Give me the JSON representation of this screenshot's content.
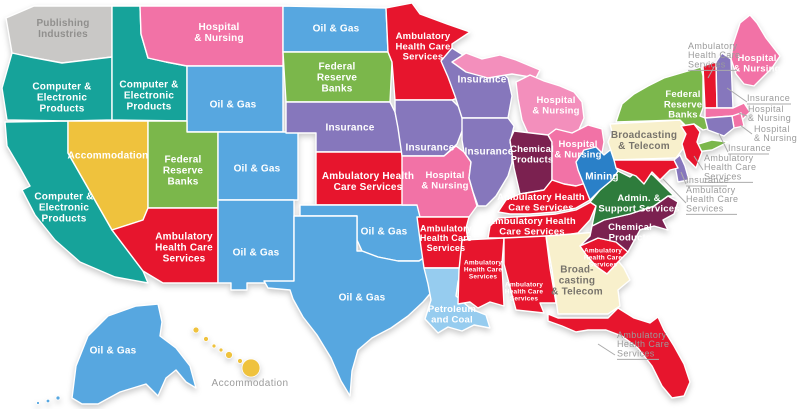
{
  "industries": {
    "publishing": {
      "label": "Publishing Industries",
      "color": "#C9C8C6",
      "text_color": "#908F8D"
    },
    "computer": {
      "label": "Computer & Electronic Products",
      "color": "#16A39A",
      "text_color": "#FFFFFF"
    },
    "hospital": {
      "label": "Hospital & Nursing",
      "color": "#F272A6",
      "text_color": "#FFFFFF"
    },
    "oil_gas": {
      "label": "Oil & Gas",
      "color": "#57A7E0",
      "text_color": "#FFFFFF"
    },
    "accommodation": {
      "label": "Accommodation",
      "color": "#EFC23D",
      "text_color": "#FFFFFF"
    },
    "fed_reserve": {
      "label": "Federal Reserve Banks",
      "color": "#7BB74B",
      "text_color": "#FFFFFF"
    },
    "insurance": {
      "label": "Insurance",
      "color": "#8677BC",
      "text_color": "#FFFFFF"
    },
    "ambulatory": {
      "label": "Ambulatory Health Care Services",
      "color": "#E7152D",
      "text_color": "#FFFFFF"
    },
    "chemical": {
      "label": "Chemical Products",
      "color": "#7B2150",
      "text_color": "#FFFFFF"
    },
    "petroleum_coal": {
      "label": "Petroleum and Coal",
      "color": "#96CCEF",
      "text_color": "#FFFFFF"
    },
    "broadcasting": {
      "label": "Broadcasting & Telecom",
      "color": "#F8F0CC",
      "text_color": "#78746C"
    },
    "mining": {
      "label": "Mining",
      "color": "#2A80C8",
      "text_color": "#FFFFFF"
    },
    "admin_support": {
      "label": "Admin. & Support Services",
      "color": "#2E7C3C",
      "text_color": "#FFFFFF"
    }
  },
  "state_color_overrides": {
    "MI": "#F38FBC"
  },
  "states": {
    "WA": "publishing",
    "OR": "computer",
    "ID": "computer",
    "CA": "computer",
    "MT": "hospital",
    "WY": "oil_gas",
    "NV": "accommodation",
    "UT": "fed_reserve",
    "CO": "oil_gas",
    "AZ": "ambulatory",
    "NM": "oil_gas",
    "ND": "oil_gas",
    "SD": "fed_reserve",
    "NE": "insurance",
    "KS": "ambulatory",
    "OK": "oil_gas",
    "TX": "oil_gas",
    "MN": "ambulatory",
    "IA": "insurance",
    "MO": "hospital",
    "AR": "ambulatory",
    "LA": "petroleum_coal",
    "WI": "insurance",
    "IL": "insurance",
    "MI": "hospital",
    "IN": "chemical",
    "OH": "hospital",
    "KY": "ambulatory",
    "TN": "ambulatory",
    "MS": "ambulatory",
    "AL": "ambulatory",
    "GA": "broadcasting",
    "FL": "ambulatory",
    "SC": "ambulatory",
    "NC": "chemical",
    "VA": "admin_support",
    "WV": "mining",
    "PA": "broadcasting",
    "NY": "fed_reserve",
    "VT": "ambulatory",
    "NH": "insurance",
    "ME": "hospital",
    "MA": "hospital",
    "RI": "hospital",
    "CT": "insurance",
    "NJ": "ambulatory",
    "DE": "insurance",
    "MD": "ambulatory",
    "AK": "oil_gas",
    "HI": "accommodation"
  },
  "state_labels": {
    "WA": [
      "Publishing",
      "Industries"
    ],
    "OR": [
      "Computer &",
      "Electronic",
      "Products"
    ],
    "ID": [
      "Computer &",
      "Electronic",
      "Products"
    ],
    "CA": [
      "Computer &",
      "Electronic",
      "Products"
    ],
    "MT": [
      "Hospital",
      "& Nursing"
    ],
    "WY": [
      "Oil & Gas"
    ],
    "NV": [
      "Accommodation"
    ],
    "UT": [
      "Federal",
      "Reserve",
      "Banks"
    ],
    "CO": [
      "Oil & Gas"
    ],
    "AZ": [
      "Ambulatory",
      "Health Care",
      "Services"
    ],
    "NM": [
      "Oil & Gas"
    ],
    "ND": [
      "Oil & Gas"
    ],
    "SD": [
      "Federal",
      "Reserve",
      "Banks"
    ],
    "NE": [
      "Insurance"
    ],
    "KS": [
      "Ambulatory Health",
      "Care Services"
    ],
    "OK": [
      "Oil & Gas"
    ],
    "TX": [
      "Oil & Gas"
    ],
    "MN": [
      "Ambulatory",
      "Health Care",
      "Services"
    ],
    "IA": [
      "Insurance"
    ],
    "MO": [
      "Hospital",
      "& Nursing"
    ],
    "AR": [
      "Ambulatory",
      "Health Care",
      "Services"
    ],
    "LA": [
      "Petroleum",
      "and Coal"
    ],
    "WI": [
      "Insurance"
    ],
    "IL": [
      "Insurance"
    ],
    "MI": [
      "Hospital",
      "& Nursing"
    ],
    "IN": [
      "Chemical",
      "Products"
    ],
    "OH": [
      "Hospital",
      "& Nursing"
    ],
    "KY": [
      "Ambulatory Health",
      "Care Services"
    ],
    "TN": [
      "Ambulatory Health",
      "Care Services"
    ],
    "MS": [
      "Ambulatory",
      "Health Care",
      "Services"
    ],
    "AL": [
      "Ambulatory",
      "Health Care",
      "Services"
    ],
    "GA": [
      "Broad-",
      "casting",
      "& Telecom"
    ],
    "SC": [
      "Ambulatory",
      "Health Care",
      "Services"
    ],
    "NC": [
      "Chemical",
      "Products"
    ],
    "VA": [
      "Admin. &",
      "Support Services"
    ],
    "WV": [
      "Mining"
    ],
    "PA": [
      "Broadcasting",
      "& Telecom"
    ],
    "NY": [
      "Federal",
      "Reserve",
      "Banks"
    ],
    "ME": [
      "Hospital",
      "& Nursing"
    ],
    "AK": [
      "Oil & Gas"
    ]
  },
  "external_labels": {
    "VT": [
      "Ambulatory",
      "Health Care",
      "Services"
    ],
    "NH": [
      "Insurance"
    ],
    "MA": [
      "Hospital",
      "& Nursing"
    ],
    "RI": [
      "Hospital",
      "& Nursing"
    ],
    "CT": [
      "Insurance"
    ],
    "NJ": [
      "Ambulatory",
      "Health Care",
      "Services"
    ],
    "DE": [
      "Insurance"
    ],
    "MD": [
      "Ambulatory",
      "Health Care",
      "Services"
    ],
    "FL": [
      "Ambulatory",
      "Health Care",
      "Services"
    ],
    "HI": [
      "Accommodation"
    ]
  },
  "colors": {
    "background": "#FFFFFF",
    "state_border": "#FFFFFF",
    "external_text": "#9B9B9B",
    "leader_line": "#ABABAB"
  }
}
